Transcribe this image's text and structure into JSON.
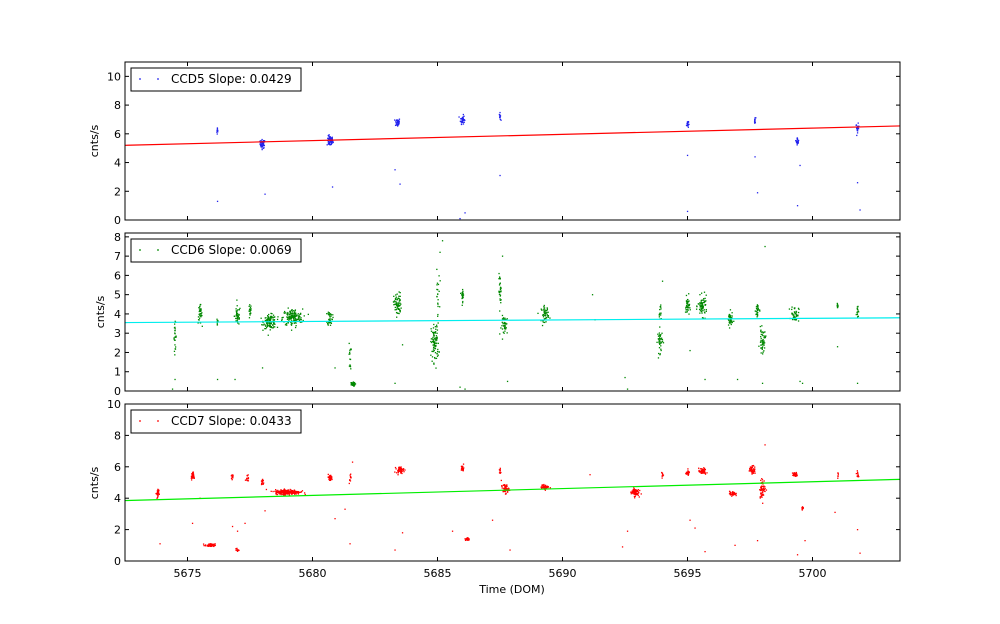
{
  "chart_data": {
    "type": "scatter",
    "xlabel": "Time (DOM)",
    "xlim": [
      5672.5,
      5703.5
    ],
    "xticks": [
      5675,
      5680,
      5685,
      5690,
      5695,
      5700
    ],
    "panels": [
      {
        "name": "ccd5",
        "legend": "CCD5 Slope: 0.0429",
        "ylabel": "cnts/s",
        "ylim": [
          0,
          11
        ],
        "yticks": [
          0,
          2,
          4,
          6,
          8,
          10
        ],
        "point_color": "#2222ee",
        "fit_color": "#ff0000",
        "fit": {
          "x": [
            5672.5,
            5703.5
          ],
          "y": [
            5.2,
            6.55
          ]
        },
        "clusters": [
          [
            5676.2,
            6.2,
            0.03,
            0.3,
            10
          ],
          [
            5678.0,
            5.3,
            0.1,
            0.3,
            45
          ],
          [
            5680.7,
            5.5,
            0.12,
            0.35,
            60
          ],
          [
            5683.4,
            6.8,
            0.1,
            0.3,
            40
          ],
          [
            5686.0,
            7.0,
            0.08,
            0.3,
            40
          ],
          [
            5687.5,
            7.2,
            0.03,
            0.25,
            12
          ],
          [
            5695.0,
            6.7,
            0.04,
            0.3,
            20
          ],
          [
            5697.7,
            6.9,
            0.03,
            0.25,
            12
          ],
          [
            5699.4,
            5.5,
            0.05,
            0.25,
            20
          ],
          [
            5701.8,
            6.4,
            0.06,
            0.3,
            25
          ]
        ],
        "outliers": [
          [
            5676.2,
            1.3
          ],
          [
            5678.1,
            1.8
          ],
          [
            5680.8,
            2.3
          ],
          [
            5683.5,
            2.5
          ],
          [
            5683.3,
            3.5
          ],
          [
            5685.9,
            0.1
          ],
          [
            5686.1,
            0.5
          ],
          [
            5687.5,
            3.1
          ],
          [
            5695.0,
            0.6
          ],
          [
            5695.0,
            4.5
          ],
          [
            5697.7,
            4.4
          ],
          [
            5697.8,
            1.9
          ],
          [
            5699.5,
            3.8
          ],
          [
            5699.4,
            1.0
          ],
          [
            5701.8,
            2.6
          ],
          [
            5701.9,
            0.7
          ]
        ]
      },
      {
        "name": "ccd6",
        "legend": "CCD6 Slope: 0.0069",
        "ylabel": "cnts/s",
        "ylim": [
          0,
          8.2
        ],
        "yticks": [
          0,
          1,
          2,
          3,
          4,
          5,
          6,
          7,
          8
        ],
        "point_color": "#008800",
        "fit_color": "#00eeee",
        "fit": {
          "x": [
            5672.5,
            5703.5
          ],
          "y": [
            3.55,
            3.8
          ]
        },
        "clusters": [
          [
            5674.5,
            2.8,
            0.05,
            0.7,
            25
          ],
          [
            5675.5,
            4.0,
            0.08,
            0.5,
            35
          ],
          [
            5676.2,
            3.6,
            0.03,
            0.3,
            10
          ],
          [
            5677.0,
            3.9,
            0.12,
            0.5,
            40
          ],
          [
            5677.5,
            4.1,
            0.05,
            0.4,
            20
          ],
          [
            5678.3,
            3.6,
            0.25,
            0.35,
            120
          ],
          [
            5679.2,
            3.8,
            0.4,
            0.45,
            160
          ],
          [
            5680.7,
            3.8,
            0.1,
            0.4,
            40
          ],
          [
            5681.6,
            0.35,
            0.1,
            0.1,
            50
          ],
          [
            5681.5,
            1.8,
            0.04,
            0.7,
            15
          ],
          [
            5683.4,
            4.5,
            0.15,
            0.6,
            70
          ],
          [
            5684.9,
            2.5,
            0.15,
            1.0,
            90
          ],
          [
            5685.0,
            5.0,
            0.08,
            1.2,
            20
          ],
          [
            5686.0,
            5.0,
            0.05,
            0.35,
            25
          ],
          [
            5687.5,
            5.2,
            0.05,
            0.8,
            30
          ],
          [
            5687.7,
            3.4,
            0.15,
            0.5,
            40
          ],
          [
            5689.3,
            4.0,
            0.15,
            0.4,
            50
          ],
          [
            5693.9,
            2.6,
            0.1,
            0.6,
            45
          ],
          [
            5693.9,
            4.1,
            0.05,
            0.5,
            15
          ],
          [
            5695.0,
            4.4,
            0.08,
            0.5,
            40
          ],
          [
            5695.6,
            4.4,
            0.18,
            0.5,
            70
          ],
          [
            5696.7,
            3.7,
            0.1,
            0.4,
            45
          ],
          [
            5697.8,
            4.2,
            0.08,
            0.5,
            25
          ],
          [
            5698.0,
            2.6,
            0.12,
            0.6,
            50
          ],
          [
            5699.3,
            4.0,
            0.15,
            0.4,
            50
          ],
          [
            5701.0,
            4.4,
            0.03,
            0.2,
            8
          ],
          [
            5701.8,
            4.2,
            0.04,
            0.3,
            15
          ]
        ],
        "outliers": [
          [
            5674.4,
            0.1
          ],
          [
            5674.5,
            0.6
          ],
          [
            5676.2,
            0.6
          ],
          [
            5676.9,
            0.6
          ],
          [
            5678.0,
            1.2
          ],
          [
            5680.9,
            1.2
          ],
          [
            5683.3,
            0.4
          ],
          [
            5683.6,
            2.4
          ],
          [
            5685.2,
            7.8
          ],
          [
            5685.1,
            7.2
          ],
          [
            5686.1,
            0.1
          ],
          [
            5685.9,
            0.2
          ],
          [
            5687.6,
            7.0
          ],
          [
            5687.8,
            0.5
          ],
          [
            5689.2,
            3.4
          ],
          [
            5691.2,
            5.0
          ],
          [
            5691.3,
            3.7
          ],
          [
            5692.5,
            0.7
          ],
          [
            5692.6,
            0.1
          ],
          [
            5694.0,
            5.7
          ],
          [
            5695.1,
            2.1
          ],
          [
            5695.7,
            0.6
          ],
          [
            5697.0,
            0.6
          ],
          [
            5698.1,
            7.5
          ],
          [
            5698.0,
            0.4
          ],
          [
            5699.5,
            0.5
          ],
          [
            5699.6,
            0.4
          ],
          [
            5701.0,
            2.3
          ],
          [
            5701.8,
            0.4
          ]
        ]
      },
      {
        "name": "ccd7",
        "legend": "CCD7 Slope: 0.0433",
        "ylabel": "cnts/s",
        "ylim": [
          0,
          10
        ],
        "yticks": [
          0,
          2,
          4,
          6,
          8,
          10
        ],
        "point_color": "#ff0000",
        "fit_color": "#00ee00",
        "fit": {
          "x": [
            5672.5,
            5703.5
          ],
          "y": [
            3.85,
            5.2
          ]
        },
        "clusters": [
          [
            5673.8,
            4.3,
            0.05,
            0.35,
            30
          ],
          [
            5675.2,
            5.4,
            0.05,
            0.25,
            30
          ],
          [
            5675.9,
            1.0,
            0.2,
            0.1,
            50
          ],
          [
            5676.8,
            5.4,
            0.05,
            0.2,
            15
          ],
          [
            5677.0,
            0.7,
            0.05,
            0.1,
            15
          ],
          [
            5677.4,
            5.3,
            0.05,
            0.2,
            15
          ],
          [
            5678.0,
            5.0,
            0.05,
            0.25,
            15
          ],
          [
            5679.0,
            4.4,
            0.5,
            0.15,
            250
          ],
          [
            5680.7,
            5.3,
            0.1,
            0.2,
            35
          ],
          [
            5681.5,
            5.3,
            0.04,
            0.3,
            10
          ],
          [
            5683.5,
            5.8,
            0.15,
            0.2,
            50
          ],
          [
            5686.0,
            5.9,
            0.05,
            0.2,
            25
          ],
          [
            5686.2,
            1.4,
            0.08,
            0.1,
            25
          ],
          [
            5687.5,
            5.7,
            0.04,
            0.2,
            10
          ],
          [
            5687.7,
            4.6,
            0.15,
            0.3,
            60
          ],
          [
            5689.3,
            4.7,
            0.15,
            0.15,
            50
          ],
          [
            5692.9,
            4.4,
            0.15,
            0.25,
            80
          ],
          [
            5694.0,
            5.5,
            0.04,
            0.2,
            10
          ],
          [
            5695.0,
            5.6,
            0.08,
            0.15,
            30
          ],
          [
            5695.6,
            5.7,
            0.15,
            0.2,
            50
          ],
          [
            5696.8,
            4.3,
            0.12,
            0.15,
            40
          ],
          [
            5697.6,
            5.8,
            0.12,
            0.25,
            50
          ],
          [
            5698.0,
            4.6,
            0.12,
            0.6,
            60
          ],
          [
            5699.3,
            5.5,
            0.1,
            0.15,
            40
          ],
          [
            5699.6,
            3.4,
            0.03,
            0.15,
            10
          ],
          [
            5701.0,
            5.5,
            0.03,
            0.15,
            6
          ],
          [
            5701.8,
            5.5,
            0.04,
            0.2,
            12
          ]
        ],
        "outliers": [
          [
            5673.9,
            1.1
          ],
          [
            5675.2,
            2.4
          ],
          [
            5675.5,
            4.0
          ],
          [
            5676.8,
            2.2
          ],
          [
            5677.3,
            2.4
          ],
          [
            5677.0,
            1.9
          ],
          [
            5678.1,
            3.2
          ],
          [
            5680.9,
            2.7
          ],
          [
            5681.3,
            3.3
          ],
          [
            5681.5,
            1.1
          ],
          [
            5681.6,
            6.3
          ],
          [
            5683.3,
            0.7
          ],
          [
            5683.6,
            1.8
          ],
          [
            5685.6,
            1.9
          ],
          [
            5687.2,
            2.6
          ],
          [
            5687.9,
            0.7
          ],
          [
            5691.1,
            5.5
          ],
          [
            5692.4,
            0.9
          ],
          [
            5692.6,
            1.9
          ],
          [
            5695.1,
            2.6
          ],
          [
            5695.3,
            2.1
          ],
          [
            5695.7,
            0.6
          ],
          [
            5696.9,
            1.0
          ],
          [
            5697.8,
            1.3
          ],
          [
            5698.1,
            7.4
          ],
          [
            5699.4,
            0.4
          ],
          [
            5699.7,
            1.3
          ],
          [
            5700.9,
            3.1
          ],
          [
            5701.8,
            2.0
          ],
          [
            5701.9,
            0.5
          ]
        ]
      }
    ]
  }
}
